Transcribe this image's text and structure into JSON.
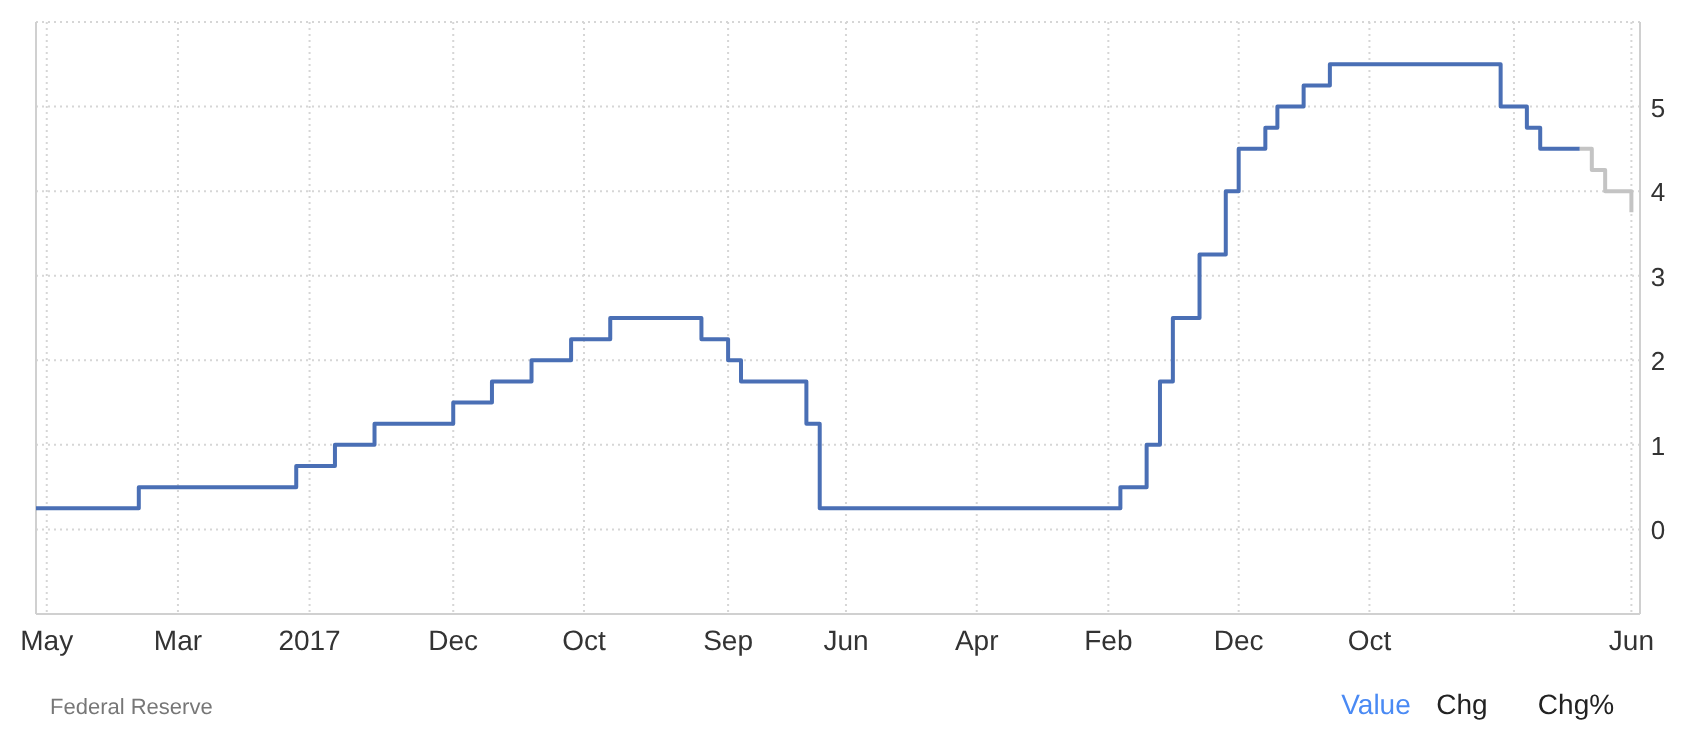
{
  "chart_data": {
    "type": "step",
    "x": [
      "2015-04-06",
      "2015-12",
      "2016-12",
      "2017-03",
      "2017-06",
      "2017-12",
      "2018-03",
      "2018-06",
      "2018-09",
      "2018-12",
      "2019-07",
      "2019-09",
      "2019-10",
      "2020-03",
      "2020-04",
      "2022-03",
      "2022-05",
      "2022-06",
      "2022-07",
      "2022-09",
      "2022-11",
      "2022-12",
      "2023-02",
      "2023-03",
      "2023-05",
      "2023-07",
      "2024-08",
      "2024-10",
      "2024-11",
      "2025-02"
    ],
    "series": [
      {
        "color": "#4a6fb5",
        "values": [
          0.25,
          0.5,
          0.75,
          1,
          1.25,
          1.5,
          1.75,
          2,
          2.25,
          2.5,
          2.25,
          2,
          1.75,
          1.25,
          0.25,
          0.5,
          1,
          1.75,
          2.5,
          3.25,
          4,
          4.5,
          4.75,
          5,
          5.25,
          5.5,
          5,
          4.75,
          4.5,
          4.5
        ]
      },
      {
        "color": "#c4c4c4",
        "x": [
          "2025-02",
          "2025-03",
          "2025-04",
          "2025-06"
        ],
        "values": [
          4.5,
          4.25,
          4,
          3.75
        ]
      }
    ],
    "xlim": [
      "2015-04-06",
      "2025-06-21"
    ],
    "xticks": [
      {
        "value": "2015-05",
        "label": "May"
      },
      {
        "value": "2016-03",
        "label": "Mar"
      },
      {
        "value": "2017",
        "label": "2017"
      },
      {
        "value": "2017-12",
        "label": "Dec"
      },
      {
        "value": "2018-10",
        "label": "Oct"
      },
      {
        "value": "2019-09",
        "label": "Sep"
      },
      {
        "value": "2020-06",
        "label": "Jun"
      },
      {
        "value": "2021-04",
        "label": "Apr"
      },
      {
        "value": "2022-02",
        "label": "Feb"
      },
      {
        "value": "2022-12",
        "label": "Dec"
      },
      {
        "value": "2023-10",
        "label": "Oct"
      },
      {
        "value": "2024-09",
        "label": null
      },
      {
        "value": "2025-06",
        "label": "Jun"
      }
    ],
    "ylim": [
      -1,
      6
    ],
    "yticks": [
      0,
      1,
      2,
      3,
      4,
      5,
      {
        "value": 6,
        "label": null
      }
    ],
    "grid": true,
    "annotations": [
      "Federal Reserve",
      "Value",
      "Chg",
      "Chg%"
    ]
  }
}
